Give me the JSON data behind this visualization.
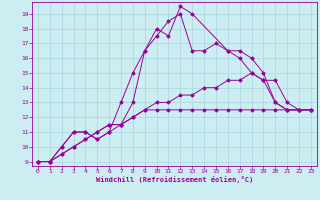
{
  "xlabel": "Windchill (Refroidissement éolien,°C)",
  "bg_color": "#cceef2",
  "grid_color": "#aad4da",
  "line_color": "#990099",
  "xlim": [
    -0.5,
    23.5
  ],
  "ylim": [
    8.7,
    19.8
  ],
  "xticks": [
    0,
    1,
    2,
    3,
    4,
    5,
    6,
    7,
    8,
    9,
    10,
    11,
    12,
    13,
    14,
    15,
    16,
    17,
    18,
    19,
    20,
    21,
    22,
    23
  ],
  "yticks": [
    9,
    10,
    11,
    12,
    13,
    14,
    15,
    16,
    17,
    18,
    19
  ],
  "lines": [
    {
      "x": [
        0,
        1,
        2,
        3,
        4,
        5,
        6,
        7,
        8,
        9,
        10,
        11,
        12,
        13,
        16,
        17,
        18,
        19,
        20,
        21,
        22,
        23
      ],
      "y": [
        9.0,
        9.0,
        10.0,
        11.0,
        11.0,
        10.5,
        11.0,
        13.0,
        15.0,
        16.5,
        18.0,
        17.5,
        19.5,
        19.0,
        16.5,
        16.5,
        16.0,
        15.0,
        13.0,
        12.5,
        12.5,
        12.5
      ]
    },
    {
      "x": [
        0,
        1,
        2,
        3,
        4,
        5,
        6,
        7,
        8,
        9,
        10,
        11,
        12,
        13,
        14,
        15,
        16,
        17,
        18,
        19,
        20,
        21,
        22,
        23
      ],
      "y": [
        9.0,
        9.0,
        10.0,
        11.0,
        11.0,
        10.5,
        11.0,
        11.5,
        13.0,
        16.5,
        17.5,
        18.5,
        19.0,
        16.5,
        16.5,
        17.0,
        16.5,
        16.0,
        15.0,
        14.5,
        13.0,
        12.5,
        12.5,
        12.5
      ]
    },
    {
      "x": [
        0,
        1,
        2,
        3,
        4,
        5,
        6,
        7,
        8,
        9,
        10,
        11,
        12,
        13,
        14,
        15,
        16,
        17,
        18,
        19,
        20,
        21,
        22,
        23
      ],
      "y": [
        9.0,
        9.0,
        9.5,
        10.0,
        10.5,
        11.0,
        11.5,
        11.5,
        12.0,
        12.5,
        13.0,
        13.0,
        13.5,
        13.5,
        14.0,
        14.0,
        14.5,
        14.5,
        15.0,
        14.5,
        14.5,
        13.0,
        12.5,
        12.5
      ]
    },
    {
      "x": [
        0,
        1,
        2,
        3,
        4,
        5,
        6,
        7,
        8,
        9,
        10,
        11,
        12,
        13,
        14,
        15,
        16,
        17,
        18,
        19,
        20,
        21,
        22,
        23
      ],
      "y": [
        9.0,
        9.0,
        9.5,
        10.0,
        10.5,
        11.0,
        11.5,
        11.5,
        12.0,
        12.5,
        12.5,
        12.5,
        12.5,
        12.5,
        12.5,
        12.5,
        12.5,
        12.5,
        12.5,
        12.5,
        12.5,
        12.5,
        12.5,
        12.5
      ]
    }
  ]
}
